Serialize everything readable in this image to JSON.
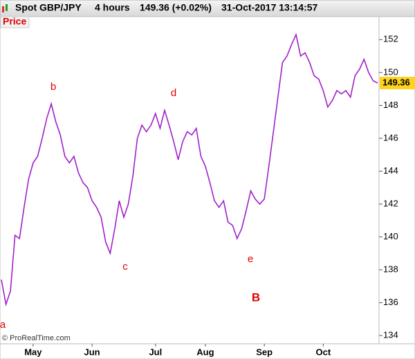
{
  "chart_data": {
    "type": "line",
    "title": "Spot GBP/JPY",
    "timeframe": "4 hours",
    "price_change": "149.36 (+0.02%)",
    "timestamp": "31-Oct-2017 13:14:57",
    "panel_label": "Price",
    "copyright": "© ProRealTime.com",
    "last_value": 149.36,
    "categories": [
      null,
      null,
      null,
      null,
      null,
      null,
      null,
      "May",
      null,
      null,
      null,
      null,
      null,
      null,
      null,
      null,
      null,
      null,
      null,
      null,
      "Jun",
      null,
      null,
      null,
      null,
      null,
      null,
      null,
      null,
      null,
      null,
      null,
      null,
      null,
      "Jul",
      null,
      null,
      null,
      null,
      null,
      null,
      null,
      null,
      null,
      null,
      "Aug",
      null,
      null,
      null,
      null,
      null,
      null,
      null,
      null,
      null,
      null,
      null,
      null,
      "Sep",
      null,
      null,
      null,
      null,
      null,
      null,
      null,
      null,
      null,
      null,
      null,
      null,
      "Oct",
      null,
      null,
      null,
      null,
      null,
      null,
      null,
      null,
      null,
      null,
      null,
      null
    ],
    "series": [
      {
        "name": "GBP/JPY",
        "color": "#a020c8",
        "values": [
          137.4,
          135.9,
          136.7,
          140.1,
          139.9,
          141.8,
          143.5,
          144.5,
          144.9,
          146,
          147.2,
          148.1,
          147,
          146.2,
          144.9,
          144.5,
          144.9,
          143.9,
          143.3,
          143,
          142.2,
          141.8,
          141.2,
          139.7,
          139,
          140.5,
          142.2,
          141.2,
          142,
          143.7,
          146,
          146.8,
          146.4,
          146.8,
          147.5,
          146.6,
          147.7,
          146.8,
          145.8,
          144.7,
          145.8,
          146.4,
          146.2,
          146.6,
          144.9,
          144.3,
          143.3,
          142.2,
          141.8,
          142.2,
          140.9,
          140.7,
          139.9,
          140.5,
          141.6,
          142.8,
          142.3,
          142,
          142.3,
          144.3,
          146.4,
          148.5,
          150.6,
          151,
          151.7,
          152.3,
          151,
          151.2,
          150.6,
          149.8,
          149.6,
          148.9,
          147.9,
          148.3,
          148.9,
          148.7,
          148.9,
          148.5,
          149.8,
          150.2,
          150.8,
          150,
          149.5,
          149.36
        ]
      }
    ],
    "ylim": [
      133.5,
      153.4
    ],
    "yticks": [
      134,
      136,
      138,
      140,
      142,
      144,
      146,
      148,
      150,
      152
    ],
    "grid": false,
    "annotations": [
      "a",
      "b",
      "c",
      "d",
      "e",
      "B"
    ]
  }
}
